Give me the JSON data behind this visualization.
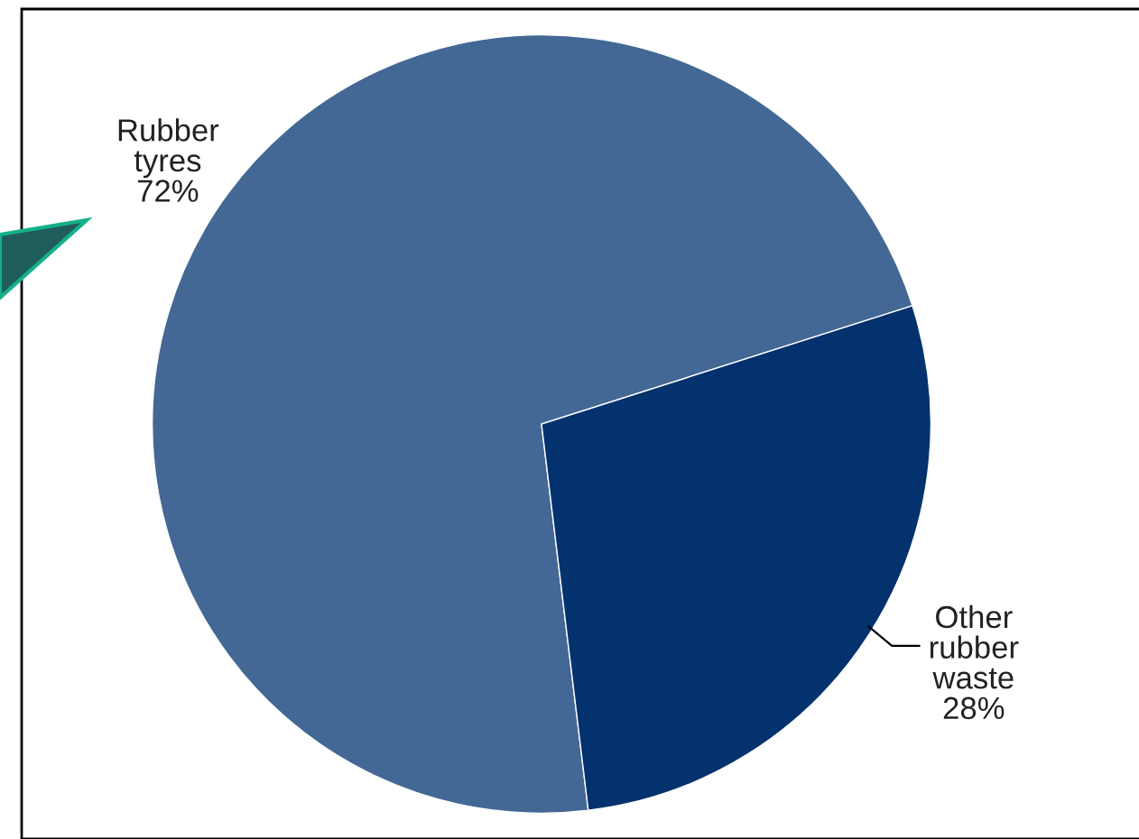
{
  "chart_data": {
    "type": "pie",
    "categories": [
      "Rubber tyres",
      "Other rubber waste"
    ],
    "values": [
      72,
      28
    ],
    "colors": [
      "#436895",
      "#03326e"
    ],
    "value_labels": [
      "72%",
      "28%"
    ],
    "legend": false
  }
}
